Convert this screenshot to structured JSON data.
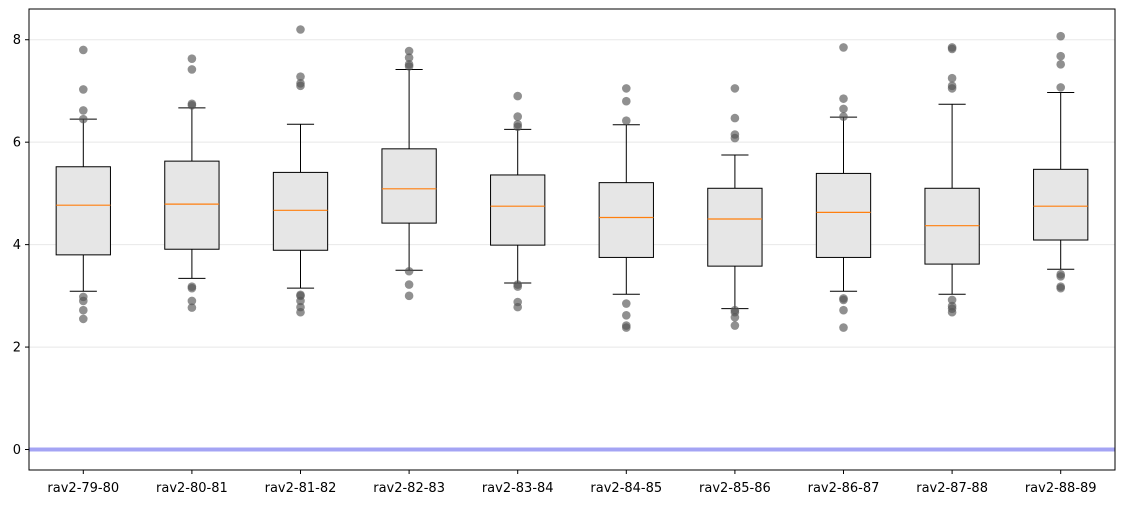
{
  "chart_data": {
    "type": "box",
    "title": "",
    "xlabel": "",
    "ylabel": "",
    "ylim": [
      -0.4,
      8.6
    ],
    "yticks": [
      0,
      2,
      4,
      6,
      8
    ],
    "grid": "horizontal",
    "reference_line": {
      "y": 0,
      "color": "#a4a4f4"
    },
    "colors": {
      "box_fill": "#e6e6e6",
      "box_edge": "#000000",
      "median": "#ff7f0e",
      "outlier": "#555555"
    },
    "categories": [
      "rav2-79-80",
      "rav2-80-81",
      "rav2-81-82",
      "rav2-82-83",
      "rav2-83-84",
      "rav2-84-85",
      "rav2-85-86",
      "rav2-86-87",
      "rav2-87-88",
      "rav2-88-89"
    ],
    "boxes": [
      {
        "q1": 3.8,
        "median": 4.77,
        "q3": 5.52,
        "whisker_low": 3.09,
        "whisker_high": 6.45,
        "outliers": [
          2.55,
          2.72,
          2.9,
          2.98,
          6.45,
          6.62,
          7.03,
          7.8
        ]
      },
      {
        "q1": 3.91,
        "median": 4.79,
        "q3": 5.63,
        "whisker_low": 3.34,
        "whisker_high": 6.67,
        "outliers": [
          2.77,
          2.9,
          3.15,
          3.18,
          6.72,
          6.75,
          7.42,
          7.63
        ]
      },
      {
        "q1": 3.89,
        "median": 4.67,
        "q3": 5.41,
        "whisker_low": 3.15,
        "whisker_high": 6.35,
        "outliers": [
          2.68,
          2.78,
          2.9,
          3.0,
          3.02,
          7.1,
          7.15,
          7.28,
          8.2
        ]
      },
      {
        "q1": 4.42,
        "median": 5.09,
        "q3": 5.87,
        "whisker_low": 3.5,
        "whisker_high": 7.42,
        "outliers": [
          3.0,
          3.22,
          3.48,
          7.48,
          7.52,
          7.65,
          7.78
        ]
      },
      {
        "q1": 3.99,
        "median": 4.75,
        "q3": 5.36,
        "whisker_low": 3.25,
        "whisker_high": 6.25,
        "outliers": [
          2.78,
          2.88,
          3.18,
          3.22,
          6.3,
          6.35,
          6.5,
          6.9
        ]
      },
      {
        "q1": 3.75,
        "median": 4.53,
        "q3": 5.21,
        "whisker_low": 3.03,
        "whisker_high": 6.34,
        "outliers": [
          2.38,
          2.42,
          2.62,
          2.85,
          6.42,
          6.8,
          7.05
        ]
      },
      {
        "q1": 3.58,
        "median": 4.5,
        "q3": 5.1,
        "whisker_low": 2.75,
        "whisker_high": 5.75,
        "outliers": [
          2.42,
          2.58,
          2.68,
          2.72,
          6.08,
          6.15,
          6.47,
          7.05
        ]
      },
      {
        "q1": 3.75,
        "median": 4.63,
        "q3": 5.39,
        "whisker_low": 3.09,
        "whisker_high": 6.49,
        "outliers": [
          2.38,
          2.72,
          2.92,
          2.95,
          6.5,
          6.65,
          6.85,
          7.85
        ]
      },
      {
        "q1": 3.62,
        "median": 4.37,
        "q3": 5.1,
        "whisker_low": 3.03,
        "whisker_high": 6.74,
        "outliers": [
          2.68,
          2.75,
          2.8,
          2.92,
          7.05,
          7.1,
          7.25,
          7.82,
          7.85
        ]
      },
      {
        "q1": 4.09,
        "median": 4.75,
        "q3": 5.47,
        "whisker_low": 3.52,
        "whisker_high": 6.97,
        "outliers": [
          3.15,
          3.18,
          3.38,
          3.42,
          7.07,
          7.52,
          7.68,
          8.07
        ]
      }
    ]
  }
}
